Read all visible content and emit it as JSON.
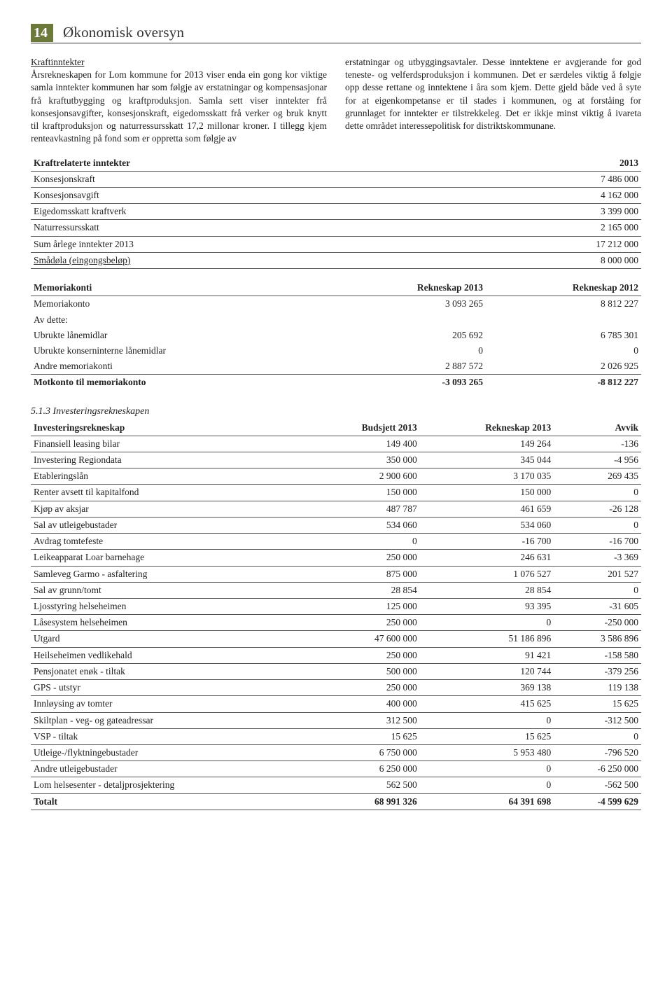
{
  "header": {
    "page_number": "14",
    "title": "Økonomisk oversyn"
  },
  "body": {
    "left_title": "Kraftinntekter",
    "left_text": "Årsrekneskapen for Lom kommune for 2013 viser enda ein gong kor viktige samla inntekter kommunen har som følgje av erstatningar og kompensasjonar frå kraftutbygging og kraftproduksjon. Samla sett viser inntekter frå konsesjonsavgifter, konsesjonskraft, eigedomsskatt frå verker og bruk knytt til kraftproduksjon og naturressursskatt 17,2 millonar kroner. I tillegg kjem renteavkastning på fond som er oppretta som følgje av",
    "right_text": "erstatningar og utbyggingsavtaler. Desse inntektene er avgjerande for god teneste- og velferdsproduksjon i kommunen. Det er særdeles viktig å følgje opp desse rettane og inntektene i åra som kjem. Dette gjeld både ved å syte for at eigenkompetanse er til stades i kommunen, og at forståing for grunnlaget for inntekter er tilstrekkeleg. Det er ikkje minst viktig å ivareta dette området interessepolitisk for distriktskommunane."
  },
  "kraft": {
    "hdr_left": "Kraftrelaterte inntekter",
    "hdr_right": "2013",
    "rows": [
      {
        "label": "Konsesjonskraft",
        "val": "7 486 000"
      },
      {
        "label": "Konsesjonsavgift",
        "val": "4 162 000"
      },
      {
        "label": "Eigedomsskatt kraftverk",
        "val": "3 399 000"
      },
      {
        "label": "Naturressursskatt",
        "val": "2 165 000"
      },
      {
        "label": "Sum årlege inntekter 2013",
        "val": "17 212 000"
      },
      {
        "label": "Smådøla (eingongsbeløp)",
        "val": "8 000 000",
        "underline": true
      }
    ]
  },
  "memoria": {
    "hdr_left": "Memoriakonti",
    "hdr_c2": "Rekneskap 2013",
    "hdr_c3": "Rekneskap 2012",
    "rows": [
      {
        "label": "Memoriakonto",
        "c2": "3 093 265",
        "c3": "8 812 227"
      },
      {
        "label": "Av dette:",
        "c2": "",
        "c3": ""
      },
      {
        "label": "Ubrukte lånemidlar",
        "c2": "205 692",
        "c3": "6 785 301"
      },
      {
        "label": "Ubrukte konserninterne lånemidlar",
        "c2": "0",
        "c3": "0"
      },
      {
        "label": "Andre memoriakonti",
        "c2": "2 887 572",
        "c3": "2 026 925"
      }
    ],
    "footer": {
      "label": "Motkonto til memoriakonto",
      "c2": "-3 093 265",
      "c3": "-8 812 227"
    }
  },
  "section_sub": "5.1.3   Investeringsrekneskapen",
  "invest": {
    "hdr_left": "Investeringsrekneskap",
    "hdr_c2": "Budsjett 2013",
    "hdr_c3": "Rekneskap  2013",
    "hdr_c4": "Avvik",
    "rows": [
      {
        "label": "Finansiell leasing bilar",
        "c2": "149 400",
        "c3": "149 264",
        "c4": "-136"
      },
      {
        "label": "Investering Regiondata",
        "c2": "350 000",
        "c3": "345 044",
        "c4": "-4 956"
      },
      {
        "label": "Etableringslån",
        "c2": "2 900 600",
        "c3": "3 170 035",
        "c4": "269 435"
      },
      {
        "label": "Renter avsett til kapitalfond",
        "c2": "150 000",
        "c3": "150 000",
        "c4": "0"
      },
      {
        "label": "Kjøp av aksjar",
        "c2": "487 787",
        "c3": "461 659",
        "c4": "-26 128"
      },
      {
        "label": "Sal av utleigebustader",
        "c2": "534 060",
        "c3": "534 060",
        "c4": "0"
      },
      {
        "label": "Avdrag tomtefeste",
        "c2": "0",
        "c3": "-16 700",
        "c4": "-16 700"
      },
      {
        "label": "Leikeapparat Loar barnehage",
        "c2": "250 000",
        "c3": "246 631",
        "c4": "-3 369"
      },
      {
        "label": "Samleveg Garmo - asfaltering",
        "c2": "875 000",
        "c3": "1 076 527",
        "c4": "201 527"
      },
      {
        "label": "Sal av grunn/tomt",
        "c2": "28 854",
        "c3": "28 854",
        "c4": "0"
      },
      {
        "label": "Ljosstyring helseheimen",
        "c2": "125 000",
        "c3": "93 395",
        "c4": "-31 605"
      },
      {
        "label": "Låsesystem helseheimen",
        "c2": "250 000",
        "c3": "0",
        "c4": "-250 000"
      },
      {
        "label": "Utgard",
        "c2": "47 600 000",
        "c3": "51 186 896",
        "c4": "3 586 896"
      },
      {
        "label": "Heilseheimen vedlikehald",
        "c2": "250 000",
        "c3": "91 421",
        "c4": "-158 580"
      },
      {
        "label": "Pensjonatet enøk - tiltak",
        "c2": "500 000",
        "c3": "120 744",
        "c4": "-379 256"
      },
      {
        "label": "GPS - utstyr",
        "c2": "250 000",
        "c3": "369 138",
        "c4": "119 138"
      },
      {
        "label": "Innløysing av tomter",
        "c2": "400 000",
        "c3": "415 625",
        "c4": "15 625"
      },
      {
        "label": "Skiltplan - veg- og gateadressar",
        "c2": "312 500",
        "c3": "0",
        "c4": "-312 500"
      },
      {
        "label": "VSP - tiltak",
        "c2": "15 625",
        "c3": "15 625",
        "c4": "0"
      },
      {
        "label": "Utleige-/flyktningebustader",
        "c2": "6 750 000",
        "c3": "5 953 480",
        "c4": "-796 520"
      },
      {
        "label": "Andre utleigebustader",
        "c2": "6 250 000",
        "c3": "0",
        "c4": "-6 250 000"
      },
      {
        "label": "Lom helsesenter - detaljprosjektering",
        "c2": "562 500",
        "c3": "0",
        "c4": "-562 500"
      }
    ],
    "footer": {
      "label": "Totalt",
      "c2": "68 991 326",
      "c3": "64 391 698",
      "c4": "-4 599 629"
    }
  }
}
